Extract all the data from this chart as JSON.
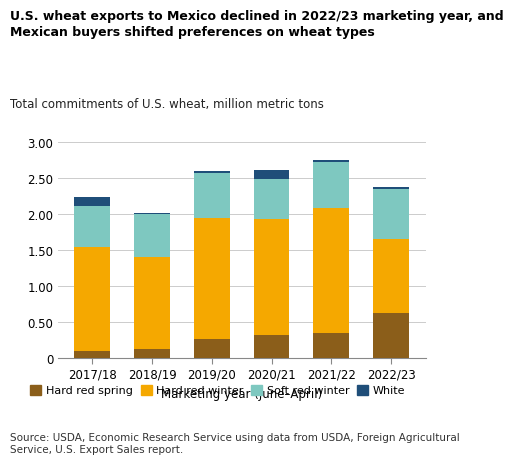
{
  "categories": [
    "2017/18",
    "2018/19",
    "2019/20",
    "2020/21",
    "2021/22",
    "2022/23"
  ],
  "hard_red_spring": [
    0.1,
    0.13,
    0.27,
    0.32,
    0.35,
    0.63
  ],
  "hard_red_winter": [
    1.45,
    1.27,
    1.68,
    1.62,
    1.73,
    1.02
  ],
  "soft_red_winter": [
    0.57,
    0.6,
    0.62,
    0.55,
    0.65,
    0.7
  ],
  "white": [
    0.12,
    0.02,
    0.03,
    0.12,
    0.02,
    0.03
  ],
  "color_hrs": "#8B5E1A",
  "color_hrw": "#F5A800",
  "color_srw": "#7EC8C0",
  "color_white": "#1F4E79",
  "title_line1": "U.S. wheat exports to Mexico declined in 2022/23 marketing year, and",
  "title_line2": "Mexican buyers shifted preferences on wheat types",
  "subtitle": "Total commitments of U.S. wheat, million metric tons",
  "xlabel": "Marketing year (June–April)",
  "ylim": [
    0,
    3.0
  ],
  "yticks": [
    0,
    0.5,
    1.0,
    1.5,
    2.0,
    2.5,
    3.0
  ],
  "ytick_labels": [
    "0",
    "0.50",
    "1.00",
    "1.50",
    "2.00",
    "2.50",
    "3.00"
  ],
  "legend_labels": [
    "Hard red spring",
    "Hard red winter",
    "Soft red winter",
    "White"
  ],
  "source_text": "Source: USDA, Economic Research Service using data from USDA, Foreign Agricultural\nService, U.S. Export Sales report.",
  "background_color": "#ffffff",
  "grid_color": "#cccccc",
  "title_fontsize": 9.0,
  "subtitle_fontsize": 8.5,
  "tick_fontsize": 8.5,
  "legend_fontsize": 8.0,
  "source_fontsize": 7.5
}
